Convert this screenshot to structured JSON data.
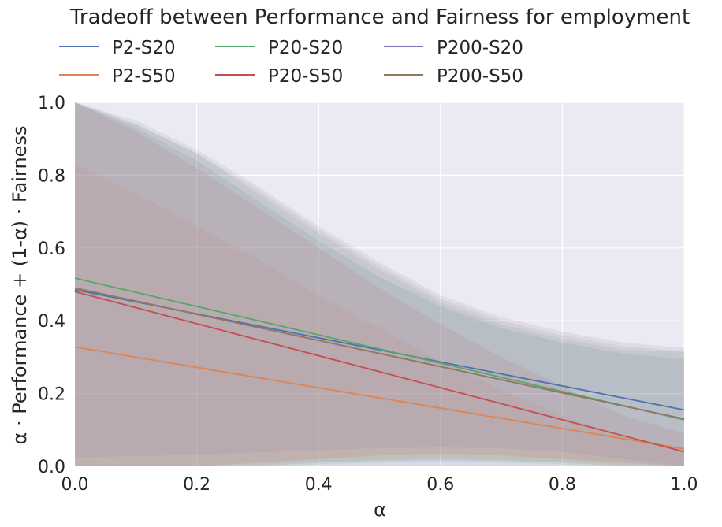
{
  "chart_data": {
    "type": "line",
    "title": "Tradeoff between Performance and Fairness for employment",
    "xlabel": "α",
    "ylabel": "α · Performance + (1-α) · Fairness",
    "xlim": [
      0.0,
      1.0
    ],
    "ylim": [
      0.0,
      1.0
    ],
    "xticks": [
      "0.0",
      "0.2",
      "0.4",
      "0.6",
      "0.8",
      "1.0"
    ],
    "yticks": [
      "0.0",
      "0.2",
      "0.4",
      "0.6",
      "0.8",
      "1.0"
    ],
    "grid": true,
    "legend_position": "top",
    "series": [
      {
        "name": "P2-S20",
        "color": "#4c72b0",
        "x": [
          0.0,
          1.0
        ],
        "y": [
          0.485,
          0.155
        ],
        "band_upper": [
          1.0,
          0.93,
          0.84,
          0.73,
          0.62,
          0.52,
          0.44,
          0.38,
          0.34,
          0.31,
          0.295
        ],
        "band_lower": [
          0.0,
          0.0,
          0.0,
          0.0,
          0.0,
          0.0,
          0.0,
          0.0,
          0.0,
          0.0,
          0.0
        ]
      },
      {
        "name": "P2-S50",
        "color": "#dd8452",
        "x": [
          0.0,
          1.0
        ],
        "y": [
          0.328,
          0.048
        ],
        "band_upper": [
          0.83,
          0.75,
          0.66,
          0.57,
          0.47,
          0.38,
          0.29,
          0.21,
          0.14,
          0.08,
          0.05
        ],
        "band_lower": [
          0.0,
          0.0,
          0.0,
          0.005,
          0.012,
          0.018,
          0.02,
          0.018,
          0.012,
          0.005,
          0.0
        ]
      },
      {
        "name": "P20-S20",
        "color": "#55a868",
        "x": [
          0.0,
          1.0
        ],
        "y": [
          0.517,
          0.128
        ],
        "band_upper": [
          1.0,
          0.94,
          0.86,
          0.75,
          0.64,
          0.54,
          0.45,
          0.39,
          0.35,
          0.32,
          0.315
        ],
        "band_lower": [
          0.0,
          0.0,
          0.0,
          0.0,
          0.005,
          0.01,
          0.012,
          0.01,
          0.005,
          0.0,
          0.0
        ]
      },
      {
        "name": "P20-S50",
        "color": "#c44e52",
        "x": [
          0.0,
          1.0
        ],
        "y": [
          0.48,
          0.04
        ],
        "band_upper": [
          1.0,
          0.92,
          0.82,
          0.71,
          0.6,
          0.49,
          0.39,
          0.3,
          0.22,
          0.14,
          0.09
        ],
        "band_lower": [
          0.0,
          0.0,
          0.0,
          0.01,
          0.02,
          0.03,
          0.035,
          0.03,
          0.02,
          0.01,
          0.0
        ]
      },
      {
        "name": "P200-S20",
        "color": "#8172b3",
        "x": [
          0.0,
          1.0
        ],
        "y": [
          0.49,
          0.13
        ],
        "band_upper": [
          1.0,
          0.95,
          0.87,
          0.77,
          0.66,
          0.56,
          0.47,
          0.41,
          0.37,
          0.34,
          0.325
        ],
        "band_lower": [
          0.025,
          0.028,
          0.032,
          0.038,
          0.045,
          0.05,
          0.052,
          0.05,
          0.04,
          0.02,
          0.0
        ]
      },
      {
        "name": "P200-S50",
        "color": "#937860",
        "x": [
          0.0,
          1.0
        ],
        "y": [
          0.49,
          0.13
        ],
        "band_upper": [
          1.0,
          0.94,
          0.86,
          0.76,
          0.65,
          0.55,
          0.46,
          0.4,
          0.36,
          0.33,
          0.315
        ],
        "band_lower": [
          0.0,
          0.0,
          0.0,
          0.0,
          0.01,
          0.015,
          0.018,
          0.015,
          0.01,
          0.0,
          0.0
        ]
      }
    ],
    "band_x": [
      0.0,
      0.1,
      0.2,
      0.3,
      0.4,
      0.5,
      0.6,
      0.7,
      0.8,
      0.9,
      1.0
    ]
  }
}
